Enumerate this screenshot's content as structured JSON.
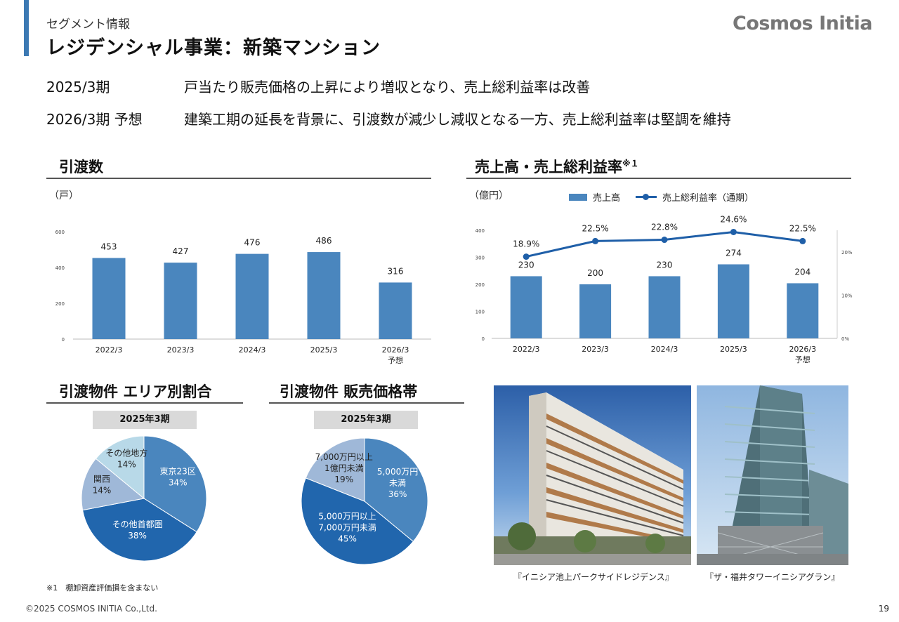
{
  "header": {
    "section": "セグメント情報",
    "title": "レジデンシャル事業：新築マンション",
    "logo": "Cosmos Initia"
  },
  "summary": [
    {
      "period": "2025/3期",
      "text": "戸当たり販売価格の上昇により増収となり、売上総利益率は改善"
    },
    {
      "period": "2026/3期 予想",
      "text": "建築工期の延長を背景に、引渡数が減少し減収となる一方、売上総利益率は堅調を維持"
    }
  ],
  "colors": {
    "bar": "#4a86be",
    "line": "#1f5fa8",
    "accent": "#3c79b3"
  },
  "chart_data": [
    {
      "type": "bar",
      "title": "引渡数",
      "unit_label": "（戸）",
      "categories": [
        "2022/3",
        "2023/3",
        "2024/3",
        "2025/3",
        "2026/3\n予想"
      ],
      "values": [
        453,
        427,
        476,
        486,
        316
      ],
      "ylim": [
        0,
        600
      ],
      "yticks": [
        0,
        200,
        400,
        600
      ]
    },
    {
      "type": "bar+line",
      "title": "売上高・売上総利益率",
      "title_note": "※１",
      "unit_label": "（億円）",
      "legend": [
        "売上高",
        "売上総利益率（通期）"
      ],
      "categories": [
        "2022/3",
        "2023/3",
        "2024/3",
        "2025/3",
        "2026/3\n予想"
      ],
      "series": [
        {
          "name": "売上高",
          "values": [
            230,
            200,
            230,
            274,
            204
          ],
          "axis": "left"
        },
        {
          "name": "売上総利益率（通期）",
          "values": [
            18.9,
            22.5,
            22.8,
            24.6,
            22.5
          ],
          "axis": "right",
          "labels": [
            "18.9%",
            "22.5%",
            "22.8%",
            "24.6%",
            "22.5%"
          ]
        }
      ],
      "ylim": [
        0,
        400
      ],
      "yticks": [
        0,
        100,
        200,
        300,
        400
      ],
      "y2lim": [
        0,
        25
      ],
      "y2ticks": [
        "0%",
        "10%",
        "20%"
      ]
    },
    {
      "type": "pie",
      "title": "引渡物件 エリア別割合",
      "period": "2025年3期",
      "slices": [
        {
          "label": "東京23区",
          "value": 34,
          "pct": "34%",
          "color": "#4a86be"
        },
        {
          "label": "その他首都圏",
          "value": 38,
          "pct": "38%",
          "color": "#2166ad"
        },
        {
          "label": "関西",
          "value": 14,
          "pct": "14%",
          "color": "#9fb8d8"
        },
        {
          "label": "その他地方",
          "value": 14,
          "pct": "14%",
          "color": "#b8d9e8"
        }
      ]
    },
    {
      "type": "pie",
      "title": "引渡物件 販売価格帯",
      "period": "2025年3期",
      "slices": [
        {
          "label": "5,000万円\n未満",
          "value": 36,
          "pct": "36%",
          "color": "#4a86be"
        },
        {
          "label": "5,000万円以上\n7,000万円未満",
          "value": 45,
          "pct": "45%",
          "color": "#2166ad"
        },
        {
          "label": "7,000万円以上\n1億円未満",
          "value": 19,
          "pct": "19%",
          "color": "#9fb8d8"
        }
      ]
    }
  ],
  "photos": [
    {
      "caption": "『イニシア池上パークサイドレジデンス』"
    },
    {
      "caption": "『ザ・福井タワーイニシアグラン』"
    }
  ],
  "footnote": "※1　棚卸資産評価損を含まない",
  "copyright": "©2025 COSMOS INITIA Co.,Ltd.",
  "page_number": "19"
}
